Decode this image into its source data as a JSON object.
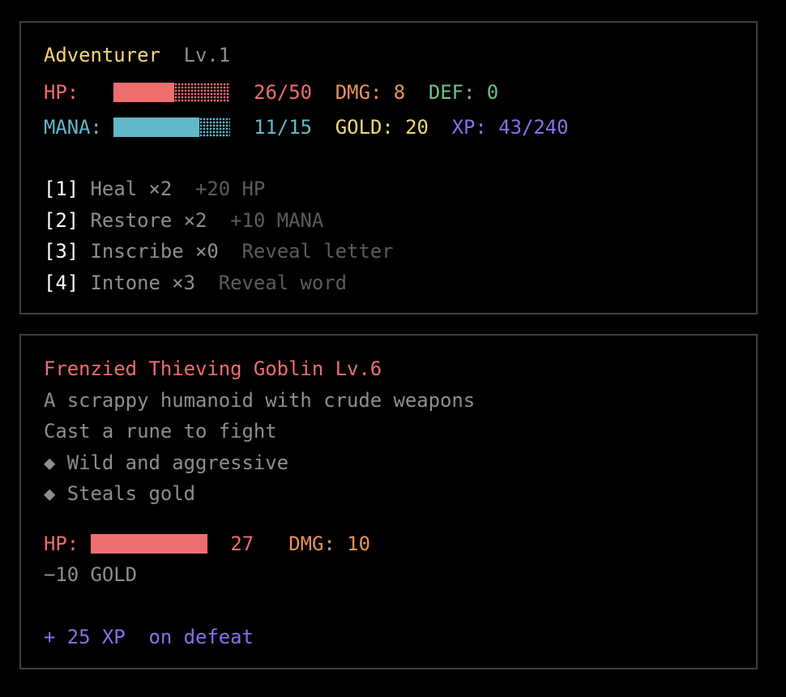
{
  "player": {
    "name": "Adventurer",
    "level": "Lv.1",
    "hp_label": "HP:",
    "hp_value": "26/50",
    "hp_fraction": 0.52,
    "dmg": "DMG: 8",
    "def": "DEF: 0",
    "mana_label": "MANA:",
    "mana_value": "11/15",
    "mana_fraction": 0.7333,
    "gold": "GOLD: 20",
    "xp": "XP: 43/240",
    "items": [
      {
        "key": "[1]",
        "name": "Heal ×2",
        "effect": "+20 HP"
      },
      {
        "key": "[2]",
        "name": "Restore ×2",
        "effect": "+10 MANA"
      },
      {
        "key": "[3]",
        "name": "Inscribe ×0",
        "effect": "Reveal letter"
      },
      {
        "key": "[4]",
        "name": "Intone ×3",
        "effect": "Reveal word"
      }
    ]
  },
  "enemy": {
    "title": "Frenzied Thieving Goblin Lv.6",
    "description": "A scrappy humanoid with crude weapons",
    "instruction": "Cast a rune to fight",
    "traits": [
      "◆ Wild and aggressive",
      "◆ Steals gold"
    ],
    "hp_label": "HP:",
    "hp_value": "27",
    "hp_fraction": 1.0,
    "dmg": "DMG: 10",
    "gold_penalty": "−10 GOLD",
    "reward": "+ 25 XP  on defeat"
  },
  "colors": {
    "hp": "#ee6e6e",
    "mana": "#62b8c9",
    "dmg": "#e8935a",
    "def": "#6fc28c",
    "gold": "#f7d774",
    "xp": "#8b6fe8",
    "border": "#3f3f3f"
  }
}
